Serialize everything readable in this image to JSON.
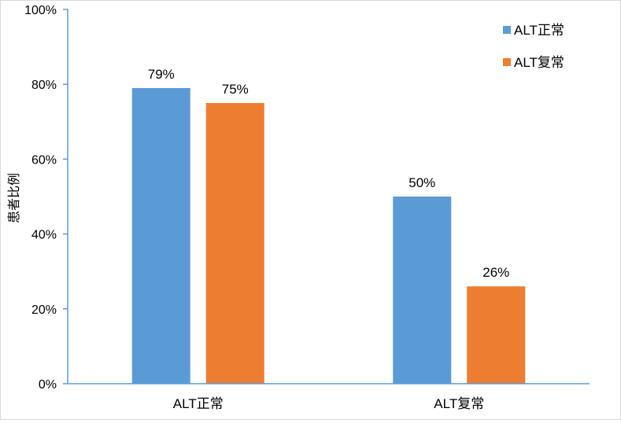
{
  "chart_data": {
    "type": "bar",
    "categories": [
      "ALT正常",
      "ALT复常"
    ],
    "series": [
      {
        "name": "ALT正常",
        "values": [
          79,
          50
        ],
        "value_labels": [
          "79%",
          "50%"
        ],
        "color": "#5b9bd5"
      },
      {
        "name": "ALT复常",
        "values": [
          75,
          26
        ],
        "value_labels": [
          "75%",
          "26%"
        ],
        "color": "#ed7d31"
      }
    ],
    "ylabel": "患者比例",
    "ylim": [
      0,
      100
    ],
    "yticks": [
      0,
      20,
      40,
      60,
      80,
      100
    ],
    "ytick_labels": [
      "0%",
      "20%",
      "40%",
      "60%",
      "80%",
      "100%"
    ],
    "grid": false,
    "legend": "top-right",
    "axis_color": "#5b9bd5"
  }
}
